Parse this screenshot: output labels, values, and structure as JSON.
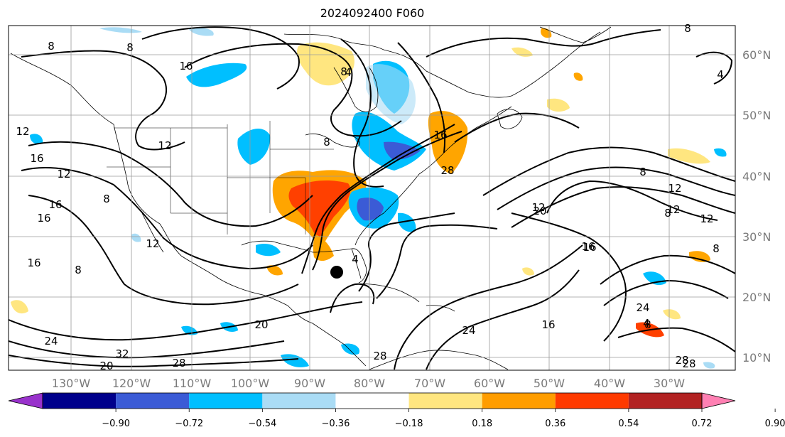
{
  "title": "2024092400 F060",
  "lat_labels": [
    "60°N",
    "50°N",
    "40°N",
    "30°N",
    "20°N",
    "10°N"
  ],
  "lon_labels": [
    "130°W",
    "120°W",
    "110°W",
    "100°W",
    "90°W",
    "80°W",
    "70°W",
    "60°W",
    "50°W",
    "40°W",
    "30°W"
  ],
  "colorbar": {
    "colors": [
      "#9932cc",
      "#00008b",
      "#3b5bd6",
      "#00bfff",
      "#aadcf5",
      "#ffffff",
      "#ffe680",
      "#ff9d00",
      "#ff3a00",
      "#b22222",
      "#ff80b3"
    ],
    "labels": [
      "−0.90",
      "−0.72",
      "−0.54",
      "−0.36",
      "−0.18",
      "0.18",
      "0.36",
      "0.54",
      "0.72",
      "0.90"
    ]
  },
  "contour_labels": [
    "8",
    "8",
    "16",
    "8",
    "8",
    "4",
    "12",
    "16",
    "12",
    "16",
    "16",
    "8",
    "12",
    "12",
    "16",
    "8",
    "4",
    "12",
    "8",
    "20",
    "32",
    "28",
    "24",
    "20",
    "28",
    "8",
    "4",
    "12",
    "12",
    "20",
    "12",
    "16",
    "8",
    "16",
    "24",
    "16",
    "28",
    "28",
    "24",
    "8",
    "4",
    "8",
    "16",
    "28"
  ],
  "storm_marker": "storm-center"
}
